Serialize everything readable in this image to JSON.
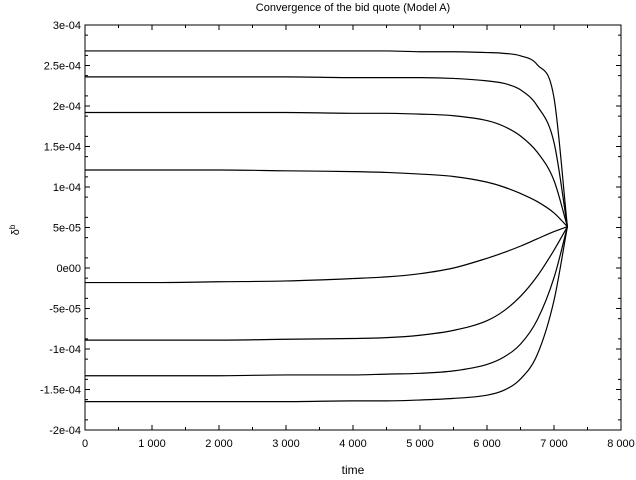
{
  "chart_data": {
    "type": "line",
    "title": "Convergence of the bid quote (Model A)",
    "xlabel": "time",
    "ylabel": "δ",
    "ylabel_superscript": "b",
    "xlim": [
      0,
      8000
    ],
    "ylim": [
      -0.0002,
      0.0003
    ],
    "x_ticks": [
      0,
      1000,
      2000,
      3000,
      4000,
      5000,
      6000,
      7000,
      8000
    ],
    "x_tick_labels": [
      "0",
      "1 000",
      "2 000",
      "3 000",
      "4 000",
      "5 000",
      "6 000",
      "7 000",
      "8 000"
    ],
    "y_ticks": [
      0.0003,
      0.00025,
      0.0002,
      0.00015,
      0.0001,
      5e-05,
      0,
      -5e-05,
      -0.0001,
      -0.00015,
      -0.0002
    ],
    "y_tick_labels": [
      "3e-04",
      "2.5e-04",
      "2e-04",
      "1.5e-04",
      "1e-04",
      "5e-05",
      "0e00",
      "-5e-05",
      "-1e-04",
      "-1.5e-04",
      "-2e-04"
    ],
    "grid": false,
    "line_color": "#000000",
    "x": [
      0,
      1000,
      2000,
      3000,
      4000,
      4500,
      5000,
      5500,
      6000,
      6250,
      6500,
      6750,
      7000,
      7200
    ],
    "series": [
      {
        "values": [
          0.000268,
          0.000268,
          0.000268,
          0.000268,
          0.000268,
          0.000268,
          0.000267,
          0.000267,
          0.000266,
          0.000265,
          0.000262,
          0.000251,
          0.00021,
          5.1e-05
        ]
      },
      {
        "values": [
          0.000236,
          0.000236,
          0.000236,
          0.000236,
          0.000235,
          0.000235,
          0.000235,
          0.000234,
          0.000231,
          0.000228,
          0.00022,
          0.0002,
          0.000155,
          5.1e-05
        ]
      },
      {
        "values": [
          0.000192,
          0.000192,
          0.000192,
          0.000192,
          0.000191,
          0.000191,
          0.00019,
          0.000188,
          0.000182,
          0.000175,
          0.000163,
          0.000143,
          0.000108,
          5.1e-05
        ]
      },
      {
        "values": [
          0.000121,
          0.000121,
          0.000121,
          0.00012,
          0.000119,
          0.000118,
          0.000116,
          0.000113,
          0.000106,
          0.0001,
          9.2e-05,
          8.2e-05,
          6.8e-05,
          5.1e-05
        ]
      },
      {
        "values": [
          -1.8e-05,
          -1.8e-05,
          -1.7e-05,
          -1.6e-05,
          -1.3e-05,
          -1.1e-05,
          -7e-06,
          0.0,
          1.2e-05,
          1.9e-05,
          2.7e-05,
          3.6e-05,
          4.5e-05,
          5.1e-05
        ]
      },
      {
        "values": [
          -8.9e-05,
          -8.9e-05,
          -8.9e-05,
          -8.8e-05,
          -8.7e-05,
          -8.6e-05,
          -8.3e-05,
          -7.7e-05,
          -6.5e-05,
          -5.3e-05,
          -3.5e-05,
          -1e-05,
          2.2e-05,
          5.1e-05
        ]
      },
      {
        "values": [
          -0.000133,
          -0.000133,
          -0.000133,
          -0.000132,
          -0.000132,
          -0.000131,
          -0.00013,
          -0.000127,
          -0.000119,
          -0.00011,
          -9.4e-05,
          -6.4e-05,
          -1.2e-05,
          5.1e-05
        ]
      },
      {
        "values": [
          -0.000165,
          -0.000165,
          -0.000165,
          -0.000165,
          -0.000164,
          -0.000164,
          -0.000163,
          -0.000161,
          -0.000157,
          -0.000151,
          -0.000137,
          -0.000107,
          -4e-05,
          5.1e-05
        ]
      }
    ]
  }
}
